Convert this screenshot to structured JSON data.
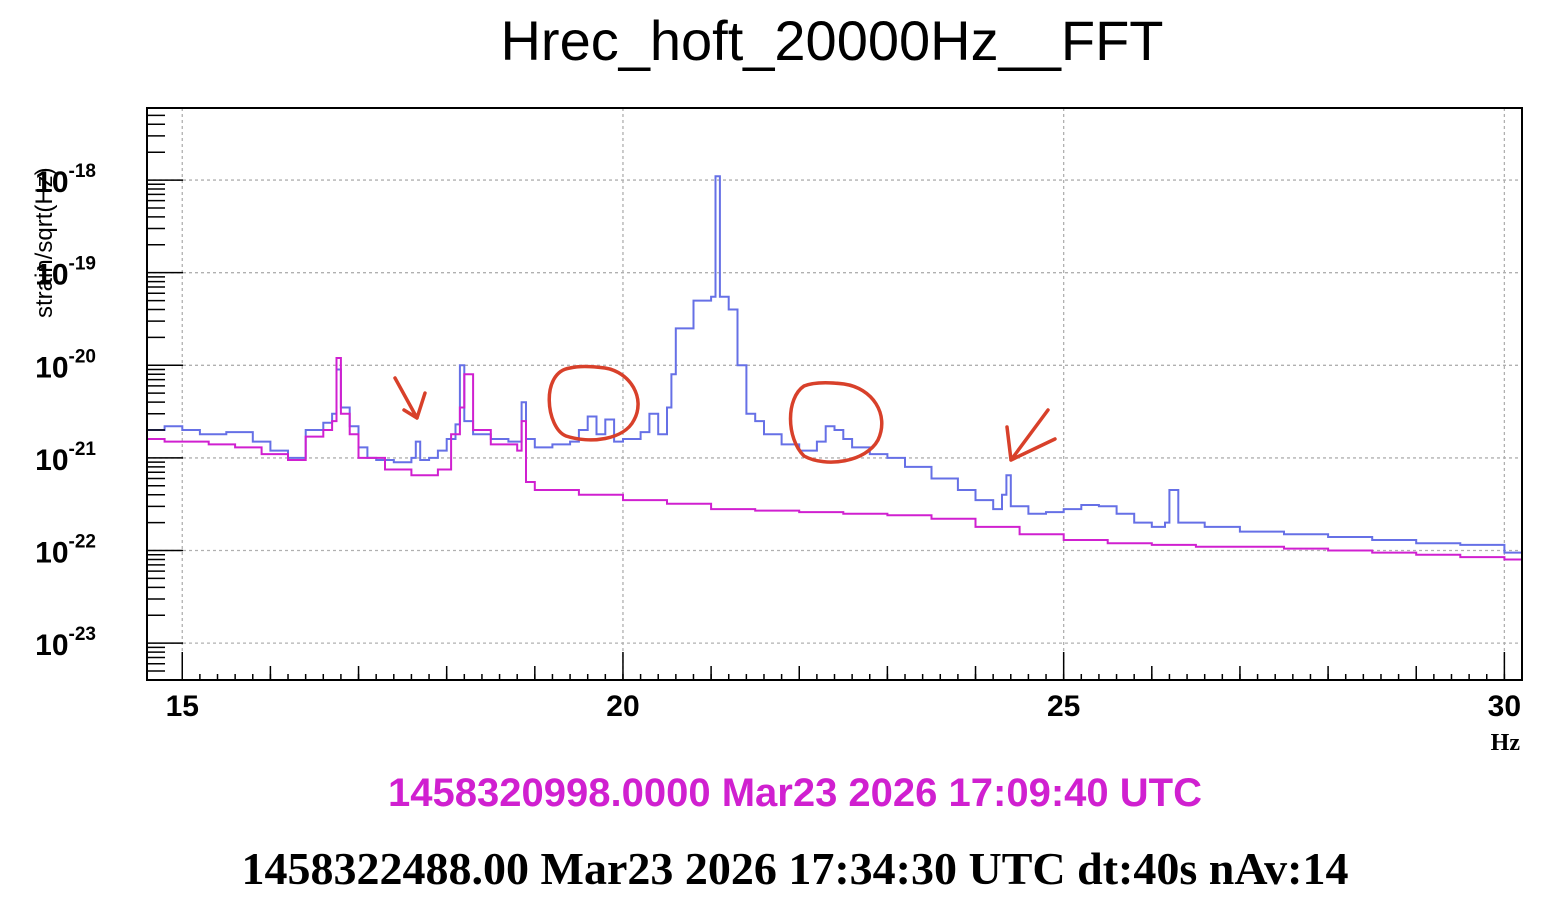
{
  "chart_data": {
    "type": "line",
    "title": "Hrec_hoft_20000Hz__FFT",
    "xlabel": "Hz",
    "ylabel": "strain/sqrt(Hz)",
    "xlim": [
      14.6,
      30.2
    ],
    "ylim": [
      4e-24,
      6e-18
    ],
    "yscale": "log",
    "grid": true,
    "x_ticks": [
      15,
      20,
      25,
      30
    ],
    "y_ticks": [
      {
        "mantissa": "10",
        "exponent": "-18",
        "value": 1e-18
      },
      {
        "mantissa": "10",
        "exponent": "-19",
        "value": 1e-19
      },
      {
        "mantissa": "10",
        "exponent": "-20",
        "value": 1e-20
      },
      {
        "mantissa": "10",
        "exponent": "-21",
        "value": 1e-21
      },
      {
        "mantissa": "10",
        "exponent": "-22",
        "value": 1e-22
      },
      {
        "mantissa": "10",
        "exponent": "-23",
        "value": 1e-23
      }
    ],
    "series": [
      {
        "color": "#6670e6",
        "x": [
          14.6,
          14.8,
          15.0,
          15.2,
          15.5,
          15.8,
          16.0,
          16.2,
          16.4,
          16.6,
          16.7,
          16.75,
          16.8,
          16.9,
          17.0,
          17.1,
          17.2,
          17.4,
          17.6,
          17.65,
          17.7,
          17.8,
          17.9,
          18.0,
          18.1,
          18.15,
          18.2,
          18.3,
          18.5,
          18.7,
          18.85,
          18.9,
          19.0,
          19.2,
          19.4,
          19.5,
          19.6,
          19.7,
          19.8,
          19.9,
          20.0,
          20.2,
          20.3,
          20.4,
          20.5,
          20.55,
          20.6,
          20.8,
          21.0,
          21.05,
          21.1,
          21.2,
          21.3,
          21.4,
          21.5,
          21.6,
          21.8,
          22.0,
          22.2,
          22.3,
          22.4,
          22.5,
          22.6,
          22.8,
          23.0,
          23.2,
          23.5,
          23.8,
          24.0,
          24.2,
          24.3,
          24.35,
          24.4,
          24.6,
          24.8,
          25.0,
          25.2,
          25.4,
          25.6,
          25.8,
          26.0,
          26.15,
          26.2,
          26.3,
          26.6,
          27.0,
          27.5,
          28.0,
          28.5,
          29.0,
          29.5,
          30.0,
          30.2
        ],
        "y": [
          2e-21,
          2.2e-21,
          2e-21,
          1.8e-21,
          1.9e-21,
          1.5e-21,
          1.2e-21,
          1e-21,
          2e-21,
          2.4e-21,
          3e-21,
          9e-21,
          3.5e-21,
          2.2e-21,
          1.3e-21,
          1e-21,
          9.5e-22,
          9e-22,
          1e-21,
          1.5e-21,
          9.5e-22,
          1e-21,
          1.2e-21,
          1.6e-21,
          2.3e-21,
          1e-20,
          2.5e-21,
          1.8e-21,
          1.6e-21,
          1.5e-21,
          4e-21,
          1.6e-21,
          1.3e-21,
          1.4e-21,
          1.5e-21,
          2e-21,
          2.8e-21,
          1.8e-21,
          2.6e-21,
          1.5e-21,
          1.6e-21,
          1.9e-21,
          3e-21,
          1.8e-21,
          3.5e-21,
          8e-21,
          2.5e-20,
          5e-20,
          5.5e-20,
          1.1e-18,
          5.5e-20,
          4e-20,
          1e-20,
          3e-21,
          2.5e-21,
          1.8e-21,
          1.4e-21,
          1.2e-21,
          1.5e-21,
          2.2e-21,
          2e-21,
          1.6e-21,
          1.3e-21,
          1.1e-21,
          1e-21,
          8e-22,
          6e-22,
          4.5e-22,
          3.5e-22,
          2.8e-22,
          4e-22,
          6.5e-22,
          3e-22,
          2.5e-22,
          2.6e-22,
          2.8e-22,
          3.1e-22,
          3e-22,
          2.5e-22,
          2e-22,
          1.8e-22,
          2e-22,
          4.5e-22,
          2e-22,
          1.8e-22,
          1.6e-22,
          1.5e-22,
          1.4e-22,
          1.3e-22,
          1.2e-22,
          1.15e-22,
          9.5e-23,
          9.5e-23
        ]
      },
      {
        "color": "#d020d0",
        "x": [
          14.6,
          14.8,
          15.0,
          15.3,
          15.6,
          15.9,
          16.2,
          16.4,
          16.6,
          16.7,
          16.75,
          16.8,
          16.9,
          17.0,
          17.3,
          17.6,
          17.9,
          18.05,
          18.15,
          18.2,
          18.3,
          18.5,
          18.8,
          18.85,
          18.9,
          19.0,
          19.5,
          20.0,
          20.5,
          21.0,
          21.5,
          22.0,
          22.5,
          23.0,
          23.5,
          24.0,
          24.5,
          25.0,
          25.5,
          26.0,
          26.5,
          27.0,
          27.5,
          28.0,
          28.5,
          29.0,
          29.5,
          30.0,
          30.2
        ],
        "y": [
          1.6e-21,
          1.5e-21,
          1.5e-21,
          1.4e-21,
          1.3e-21,
          1.1e-21,
          9.5e-22,
          1.7e-21,
          2e-21,
          2.5e-21,
          1.2e-20,
          3e-21,
          1.8e-21,
          1e-21,
          7.5e-22,
          6.5e-22,
          7.5e-22,
          1.8e-21,
          3.5e-21,
          8e-21,
          2e-21,
          1.4e-21,
          1.2e-21,
          2.5e-21,
          5.5e-22,
          4.5e-22,
          4e-22,
          3.5e-22,
          3.2e-22,
          2.8e-22,
          2.7e-22,
          2.6e-22,
          2.5e-22,
          2.4e-22,
          2.2e-22,
          1.8e-22,
          1.5e-22,
          1.3e-22,
          1.2e-22,
          1.15e-22,
          1.1e-22,
          1.1e-22,
          1.05e-22,
          1e-22,
          9.5e-23,
          9e-23,
          8.5e-23,
          8e-23,
          8e-23
        ]
      }
    ]
  },
  "footer": {
    "start_time": "1458320998.0000 Mar23 2026 17:09:40 UTC",
    "start_color": "#d020d0",
    "end_time": "1458322488.00 Mar23 2026 17:34:30 UTC dt:40s nAv:14"
  }
}
